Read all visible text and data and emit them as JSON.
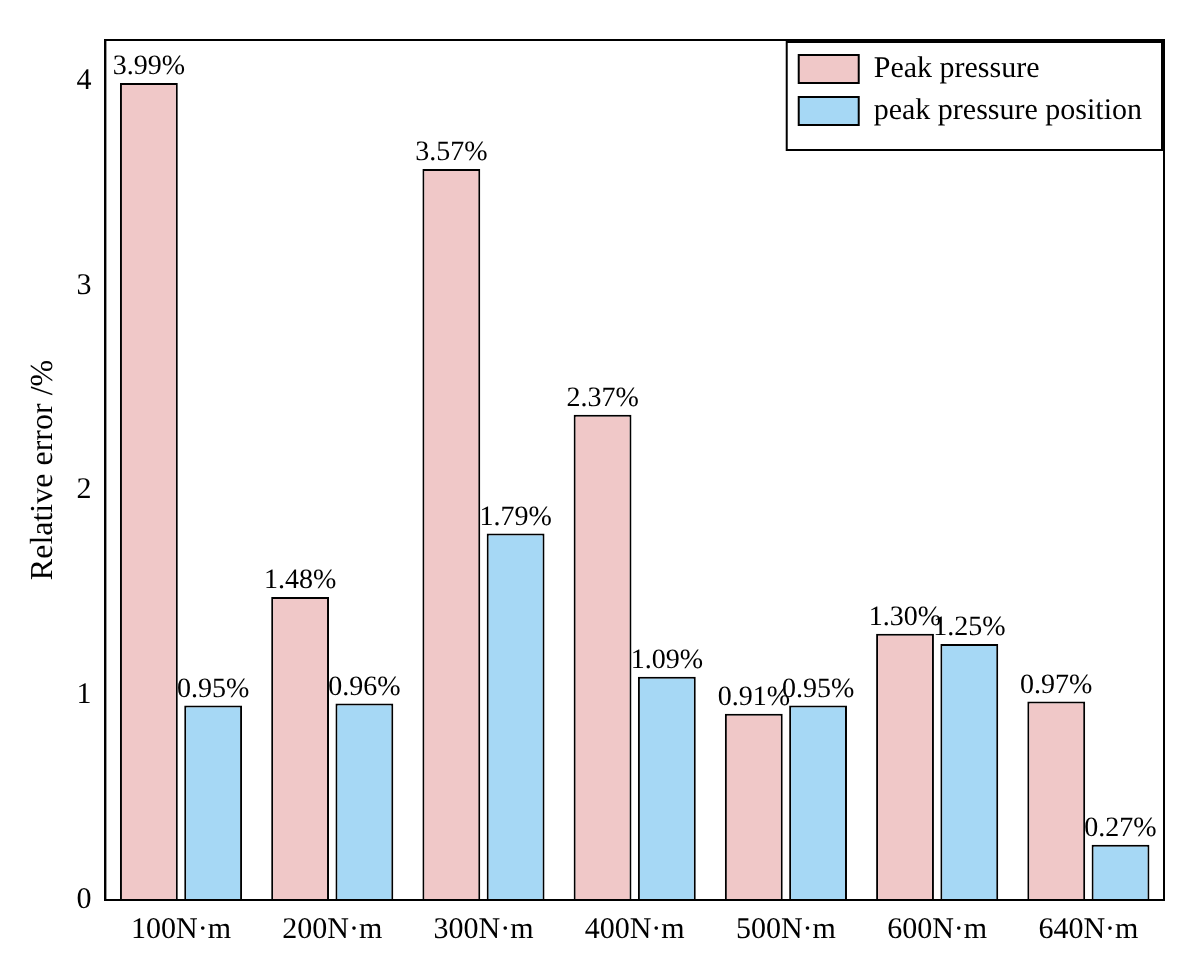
{
  "chart_data": {
    "type": "bar",
    "ylabel": "Relative error /%",
    "categories": [
      "100N·m",
      "200N·m",
      "300N·m",
      "400N·m",
      "500N·m",
      "600N·m",
      "640N·m"
    ],
    "series": [
      {
        "name": "Peak pressure",
        "color": "#f0c8c8",
        "values": [
          3.99,
          1.48,
          3.57,
          2.37,
          0.91,
          1.3,
          0.97
        ],
        "value_labels": [
          "3.99%",
          "1.48%",
          "3.57%",
          "2.37%",
          "0.91%",
          "1.30%",
          "0.97%"
        ]
      },
      {
        "name": "peak pressure position",
        "color": "#a6d8f5",
        "values": [
          0.95,
          0.96,
          1.79,
          1.09,
          0.95,
          1.25,
          0.27
        ],
        "value_labels": [
          "0.95%",
          "0.96%",
          "1.79%",
          "1.09%",
          "0.95%",
          "1.25%",
          "0.27%"
        ]
      }
    ],
    "ylim": [
      0,
      4.2
    ],
    "yticks": [
      0,
      1,
      2,
      3,
      4
    ],
    "grid": false,
    "legend": "top right"
  }
}
